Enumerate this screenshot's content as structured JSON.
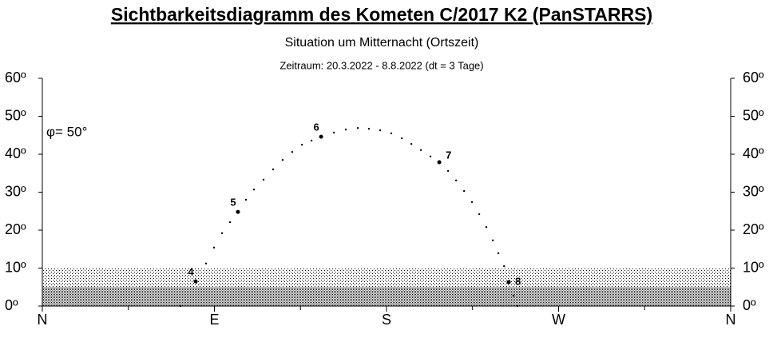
{
  "chart_data": {
    "type": "scatter",
    "title": "Sichtbarkeitsdiagramm des Kometen C/2017 K2 (PanSTARRS)",
    "subtitle": "Situation um Mitternacht (Ortszeit)",
    "period": "Zeitraum: 20.3.2022 - 8.8.2022  (dt = 3 Tage)",
    "annotation": "φ= 50°",
    "color": "#000000",
    "x": [
      72.3,
      80.2,
      85.6,
      89.8,
      94.0,
      98.2,
      102.3,
      106.5,
      110.7,
      115.7,
      120.7,
      125.7,
      130.7,
      135.8,
      140.8,
      145.8,
      152.5,
      158.7,
      165.0,
      170.8,
      176.7,
      182.5,
      188.0,
      193.0,
      198.0,
      203.0,
      207.6,
      212.2,
      216.4,
      220.6,
      224.7,
      228.5,
      232.2,
      235.6,
      238.5,
      241.5,
      243.9,
      246.4,
      248.5
    ],
    "values": [
      0,
      6.5,
      11.2,
      15.4,
      19.2,
      22.1,
      24.8,
      28.0,
      30.7,
      33.3,
      36.0,
      38.5,
      40.6,
      42.5,
      43.6,
      44.6,
      45.7,
      46.5,
      46.9,
      46.7,
      46.3,
      45.5,
      44.2,
      42.7,
      41.1,
      39.4,
      37.9,
      35.6,
      33.1,
      30.3,
      27.4,
      24.2,
      20.8,
      17.3,
      13.9,
      10.5,
      6.3,
      2.7,
      0
    ],
    "value_labels": [
      null,
      "4",
      null,
      null,
      null,
      null,
      "5",
      null,
      null,
      null,
      null,
      null,
      null,
      null,
      null,
      "6",
      null,
      null,
      null,
      null,
      null,
      null,
      null,
      null,
      null,
      null,
      "7",
      null,
      null,
      null,
      null,
      null,
      null,
      null,
      null,
      null,
      "8",
      null,
      null
    ],
    "xlim": [
      0,
      360
    ],
    "xticks": [
      {
        "value": 0,
        "label": "N"
      },
      {
        "value": 90,
        "label": "E"
      },
      {
        "value": 180,
        "label": "S"
      },
      {
        "value": 270,
        "label": "W"
      },
      {
        "value": 360,
        "label": "N"
      }
    ],
    "xminor": [
      45,
      135,
      225,
      315
    ],
    "ylim": [
      0,
      60
    ],
    "yticks": [
      {
        "value": 0,
        "label": "0º"
      },
      {
        "value": 10,
        "label": "10º"
      },
      {
        "value": 20,
        "label": "20º"
      },
      {
        "value": 30,
        "label": "30º"
      },
      {
        "value": 40,
        "label": "40º"
      },
      {
        "value": 50,
        "label": "50º"
      },
      {
        "value": 60,
        "label": "60º"
      }
    ],
    "horizon": 10
  }
}
